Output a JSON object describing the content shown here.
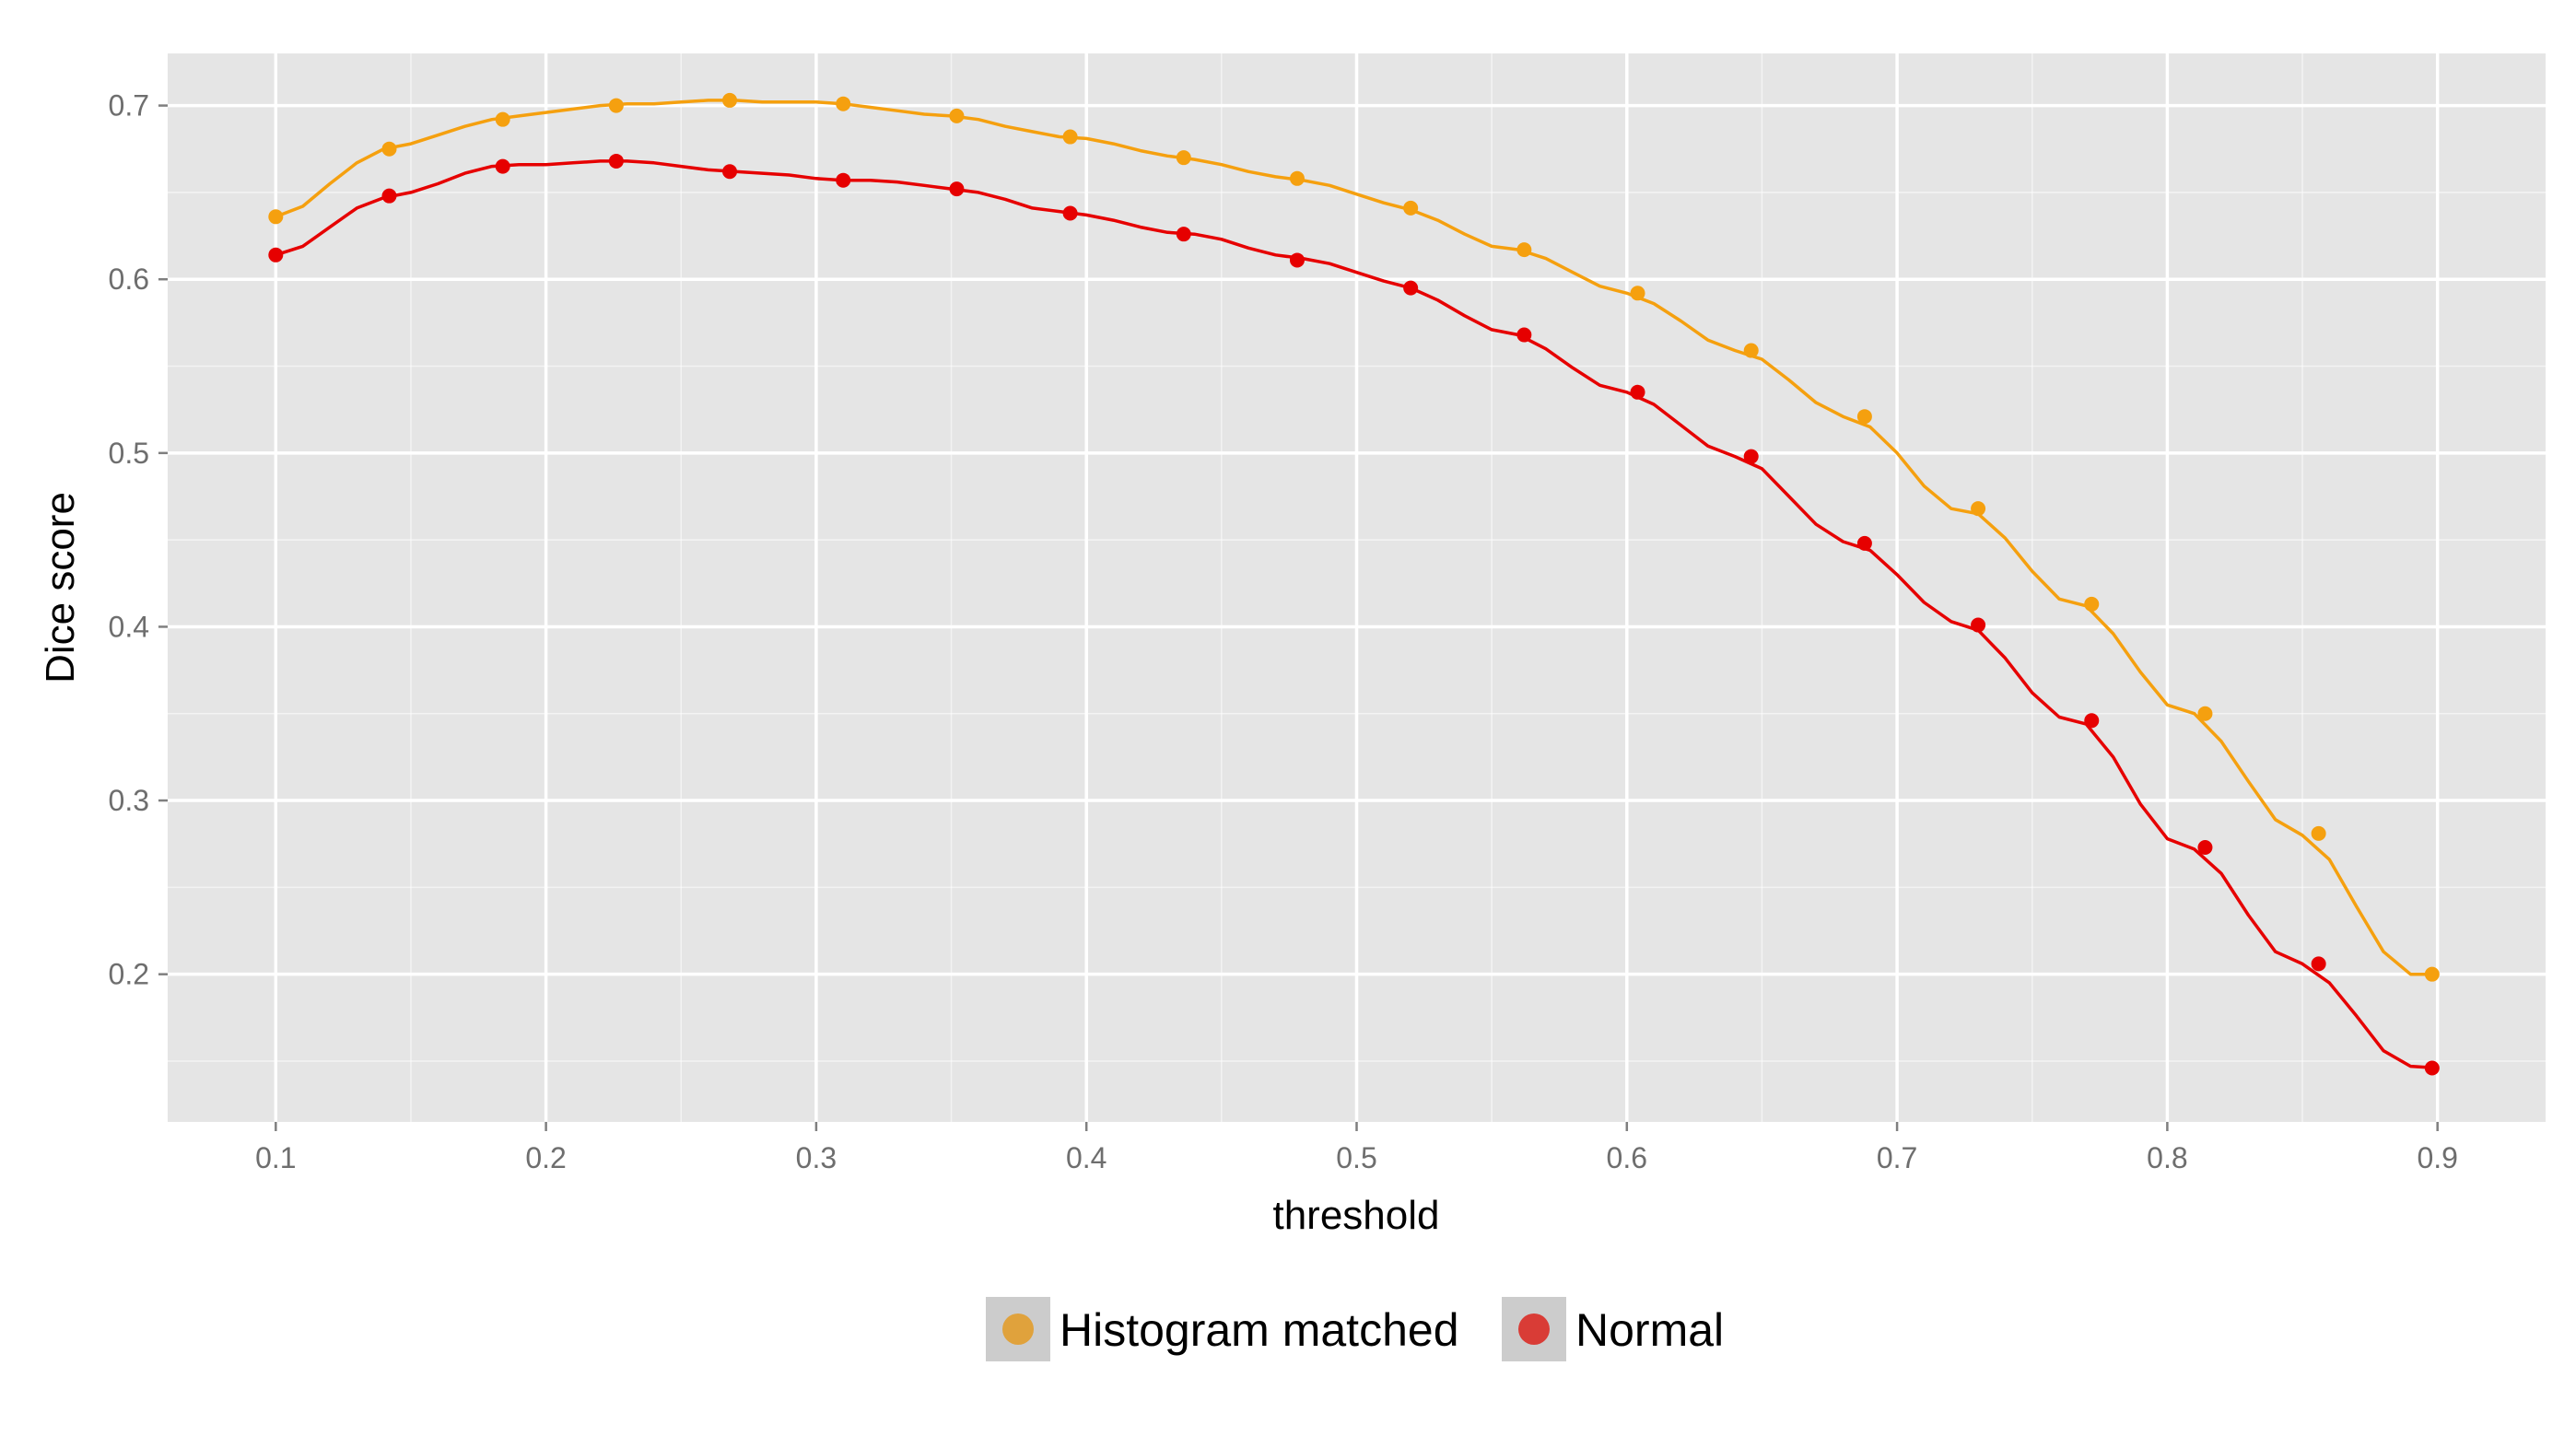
{
  "chart_data": {
    "type": "line",
    "title": "",
    "xlabel": "threshold",
    "ylabel": "Dice score",
    "xlim": [
      0.06,
      0.94
    ],
    "ylim": [
      0.115,
      0.73
    ],
    "x_ticks": [
      0.1,
      0.2,
      0.3,
      0.4,
      0.5,
      0.6,
      0.7,
      0.8,
      0.9
    ],
    "x_tick_labels": [
      "0.1",
      "0.2",
      "0.3",
      "0.4",
      "0.5",
      "0.6",
      "0.7",
      "0.8",
      "0.9"
    ],
    "y_ticks": [
      0.2,
      0.3,
      0.4,
      0.5,
      0.6,
      0.7
    ],
    "y_tick_labels": [
      "0.2",
      "0.3",
      "0.4",
      "0.5",
      "0.6",
      "0.7"
    ],
    "grid": true,
    "legend_position": "bottom",
    "series": [
      {
        "name": "Histogram matched",
        "color": "#F5A00F",
        "legend_color": "#E0A23C",
        "x": [
          0.1,
          0.11,
          0.12,
          0.13,
          0.14,
          0.15,
          0.16,
          0.17,
          0.18,
          0.19,
          0.2,
          0.21,
          0.22,
          0.23,
          0.24,
          0.25,
          0.26,
          0.27,
          0.28,
          0.29,
          0.3,
          0.31,
          0.32,
          0.33,
          0.34,
          0.35,
          0.36,
          0.37,
          0.38,
          0.39,
          0.4,
          0.41,
          0.42,
          0.43,
          0.44,
          0.45,
          0.46,
          0.47,
          0.48,
          0.49,
          0.5,
          0.51,
          0.52,
          0.53,
          0.54,
          0.55,
          0.56,
          0.57,
          0.58,
          0.59,
          0.6,
          0.61,
          0.62,
          0.63,
          0.64,
          0.65,
          0.66,
          0.67,
          0.68,
          0.69,
          0.7,
          0.71,
          0.72,
          0.73,
          0.74,
          0.75,
          0.76,
          0.77,
          0.78,
          0.79,
          0.8,
          0.81,
          0.82,
          0.83,
          0.84,
          0.85,
          0.86,
          0.87,
          0.88,
          0.89,
          0.9
        ],
        "y": [
          0.636,
          0.642,
          0.655,
          0.667,
          0.675,
          0.678,
          0.683,
          0.688,
          0.692,
          0.694,
          0.696,
          0.698,
          0.7,
          0.701,
          0.701,
          0.702,
          0.703,
          0.703,
          0.702,
          0.702,
          0.702,
          0.701,
          0.699,
          0.697,
          0.695,
          0.694,
          0.692,
          0.688,
          0.685,
          0.682,
          0.681,
          0.678,
          0.674,
          0.671,
          0.669,
          0.666,
          0.662,
          0.659,
          0.657,
          0.654,
          0.649,
          0.644,
          0.64,
          0.634,
          0.626,
          0.619,
          0.617,
          0.612,
          0.604,
          0.596,
          0.592,
          0.586,
          0.576,
          0.565,
          0.559,
          0.554,
          0.542,
          0.529,
          0.521,
          0.515,
          0.5,
          0.481,
          0.468,
          0.465,
          0.451,
          0.432,
          0.416,
          0.412,
          0.396,
          0.374,
          0.355,
          0.35,
          0.334,
          0.311,
          0.289,
          0.28,
          0.266,
          0.239,
          0.213,
          0.2,
          0.2
        ],
        "markers_x": [
          0.1,
          0.142,
          0.184,
          0.226,
          0.268,
          0.31,
          0.352,
          0.394,
          0.436,
          0.478,
          0.52,
          0.562,
          0.604,
          0.646,
          0.688,
          0.73,
          0.772,
          0.814,
          0.856,
          0.898
        ],
        "markers_y": [
          0.636,
          0.675,
          0.692,
          0.7,
          0.703,
          0.701,
          0.694,
          0.682,
          0.67,
          0.658,
          0.641,
          0.617,
          0.592,
          0.559,
          0.521,
          0.468,
          0.413,
          0.35,
          0.281,
          0.2
        ]
      },
      {
        "name": "Normal",
        "color": "#E60000",
        "legend_color": "#D93C36",
        "x": [
          0.1,
          0.11,
          0.12,
          0.13,
          0.14,
          0.15,
          0.16,
          0.17,
          0.18,
          0.19,
          0.2,
          0.21,
          0.22,
          0.23,
          0.24,
          0.25,
          0.26,
          0.27,
          0.28,
          0.29,
          0.3,
          0.31,
          0.32,
          0.33,
          0.34,
          0.35,
          0.36,
          0.37,
          0.38,
          0.39,
          0.4,
          0.41,
          0.42,
          0.43,
          0.44,
          0.45,
          0.46,
          0.47,
          0.48,
          0.49,
          0.5,
          0.51,
          0.52,
          0.53,
          0.54,
          0.55,
          0.56,
          0.57,
          0.58,
          0.59,
          0.6,
          0.61,
          0.62,
          0.63,
          0.64,
          0.65,
          0.66,
          0.67,
          0.68,
          0.69,
          0.7,
          0.71,
          0.72,
          0.73,
          0.74,
          0.75,
          0.76,
          0.77,
          0.78,
          0.79,
          0.8,
          0.81,
          0.82,
          0.83,
          0.84,
          0.85,
          0.86,
          0.87,
          0.88,
          0.89,
          0.9
        ],
        "y": [
          0.614,
          0.619,
          0.63,
          0.641,
          0.647,
          0.65,
          0.655,
          0.661,
          0.665,
          0.666,
          0.666,
          0.667,
          0.668,
          0.668,
          0.667,
          0.665,
          0.663,
          0.662,
          0.661,
          0.66,
          0.658,
          0.657,
          0.657,
          0.656,
          0.654,
          0.652,
          0.65,
          0.646,
          0.641,
          0.639,
          0.637,
          0.634,
          0.63,
          0.627,
          0.626,
          0.623,
          0.618,
          0.614,
          0.612,
          0.609,
          0.604,
          0.599,
          0.595,
          0.588,
          0.579,
          0.571,
          0.568,
          0.56,
          0.549,
          0.539,
          0.535,
          0.528,
          0.516,
          0.504,
          0.498,
          0.491,
          0.475,
          0.459,
          0.449,
          0.444,
          0.43,
          0.414,
          0.403,
          0.398,
          0.382,
          0.362,
          0.348,
          0.344,
          0.325,
          0.298,
          0.278,
          0.272,
          0.258,
          0.234,
          0.213,
          0.206,
          0.195,
          0.176,
          0.156,
          0.147,
          0.146
        ],
        "markers_x": [
          0.1,
          0.142,
          0.184,
          0.226,
          0.268,
          0.31,
          0.352,
          0.394,
          0.436,
          0.478,
          0.52,
          0.562,
          0.604,
          0.646,
          0.688,
          0.73,
          0.772,
          0.814,
          0.856,
          0.898
        ],
        "markers_y": [
          0.614,
          0.648,
          0.665,
          0.668,
          0.662,
          0.657,
          0.652,
          0.638,
          0.626,
          0.611,
          0.595,
          0.568,
          0.535,
          0.498,
          0.448,
          0.401,
          0.346,
          0.273,
          0.206,
          0.146
        ]
      }
    ],
    "panel_color": "#E5E5E5",
    "grid_color": "#FFFFFF"
  }
}
